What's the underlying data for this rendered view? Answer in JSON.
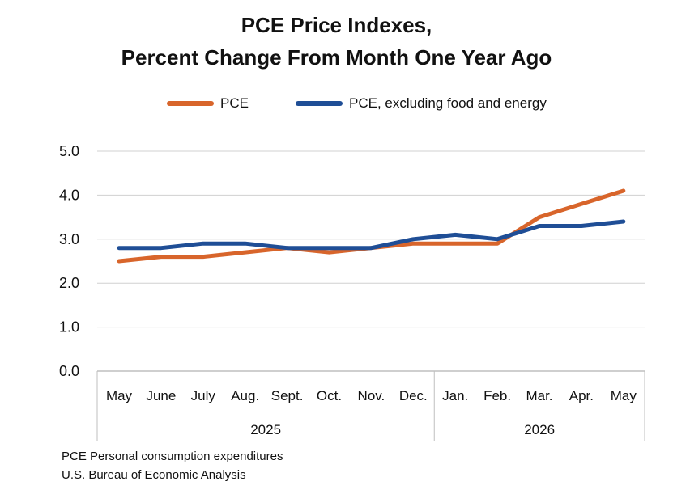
{
  "colors": {
    "pce": "#D8652B",
    "core": "#1F4E96",
    "grid": "#D0D0D0"
  },
  "footnotes": [
    "PCE Personal consumption expenditures",
    "U.S. Bureau of Economic Analysis"
  ],
  "chart_data": {
    "type": "line",
    "title": "PCE Price Indexes,",
    "subtitle": "Percent Change From Month One Year Ago",
    "xlabel": "",
    "ylabel": "",
    "ylim": [
      0,
      5
    ],
    "yticks": [
      "0.0",
      "1.0",
      "2.0",
      "3.0",
      "4.0",
      "5.0"
    ],
    "grid": true,
    "legend_position": "top",
    "categories": [
      "May",
      "June",
      "July",
      "Aug.",
      "Sept.",
      "Oct.",
      "Nov.",
      "Dec.",
      "Jan.",
      "Feb.",
      "Mar.",
      "Apr.",
      "May"
    ],
    "year_groups": [
      {
        "label": "2025",
        "count": 8
      },
      {
        "label": "2026",
        "count": 5
      }
    ],
    "series": [
      {
        "name": "PCE",
        "values": [
          2.5,
          2.6,
          2.6,
          2.7,
          2.8,
          2.7,
          2.8,
          2.9,
          2.9,
          2.9,
          3.5,
          3.8,
          4.1
        ]
      },
      {
        "name": "PCE, excluding food and energy",
        "values": [
          2.8,
          2.8,
          2.9,
          2.9,
          2.8,
          2.8,
          2.8,
          3.0,
          3.1,
          3.0,
          3.3,
          3.3,
          3.4
        ]
      }
    ]
  }
}
